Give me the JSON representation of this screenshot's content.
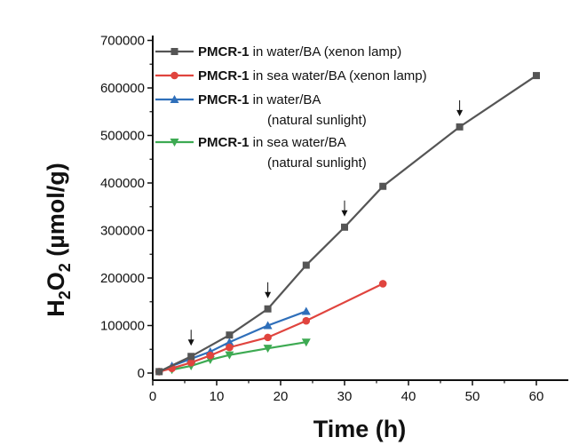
{
  "chart_data": {
    "type": "line",
    "xlabel": "Time (h)",
    "ylabel_main": "H",
    "ylabel_sub1": "2",
    "ylabel_mid": "O",
    "ylabel_sub2": "2",
    "ylabel_rest": " (µmol/g)",
    "xlim": [
      0,
      65
    ],
    "ylim": [
      -20000,
      720000
    ],
    "xticks": [
      0,
      10,
      20,
      30,
      40,
      50,
      60
    ],
    "yticks": [
      0,
      100000,
      200000,
      300000,
      400000,
      500000,
      600000,
      700000
    ],
    "xtick_labels": [
      "0",
      "10",
      "20",
      "30",
      "40",
      "50",
      "60"
    ],
    "ytick_labels": [
      "0",
      "100000",
      "200000",
      "300000",
      "400000",
      "500000",
      "600000",
      "700000"
    ],
    "grid": false,
    "legend_position": "top-right",
    "series": [
      {
        "name_bold": "PMCR-1",
        "name_rest": " in water/BA (xenon lamp)",
        "name_line2": "",
        "color": "#555555",
        "marker": "square",
        "x": [
          1,
          6,
          12,
          18,
          24,
          30,
          36,
          48,
          60
        ],
        "y": [
          3000,
          35000,
          80000,
          135000,
          227000,
          307000,
          393000,
          518000,
          626000
        ]
      },
      {
        "name_bold": "PMCR-1",
        "name_rest": " in sea water/BA (xenon lamp)",
        "name_line2": "",
        "color": "#e0443e",
        "marker": "circle",
        "x": [
          1,
          3,
          6,
          9,
          12,
          18,
          24,
          36
        ],
        "y": [
          3000,
          10000,
          22000,
          37000,
          54000,
          75000,
          110000,
          188000
        ]
      },
      {
        "name_bold": "PMCR-1",
        "name_rest": " in water/BA",
        "name_line2": "(natural sunlight)",
        "color": "#2f6fba",
        "marker": "triangle-up",
        "x": [
          3,
          6,
          9,
          12,
          18,
          24
        ],
        "y": [
          15000,
          30000,
          45000,
          65000,
          100000,
          130000
        ]
      },
      {
        "name_bold": "PMCR-1",
        "name_rest": " in sea water/BA",
        "name_line2": "(natural sunlight)",
        "color": "#3daa52",
        "marker": "triangle-down",
        "x": [
          3,
          6,
          9,
          12,
          18,
          24
        ],
        "y": [
          7000,
          15000,
          28000,
          38000,
          52000,
          65000
        ]
      }
    ],
    "annotations": [
      {
        "type": "arrow",
        "x": 6,
        "y": 35000
      },
      {
        "type": "arrow",
        "x": 18,
        "y": 135000
      },
      {
        "type": "arrow",
        "x": 30,
        "y": 307000
      },
      {
        "type": "arrow",
        "x": 48,
        "y": 518000
      }
    ]
  }
}
